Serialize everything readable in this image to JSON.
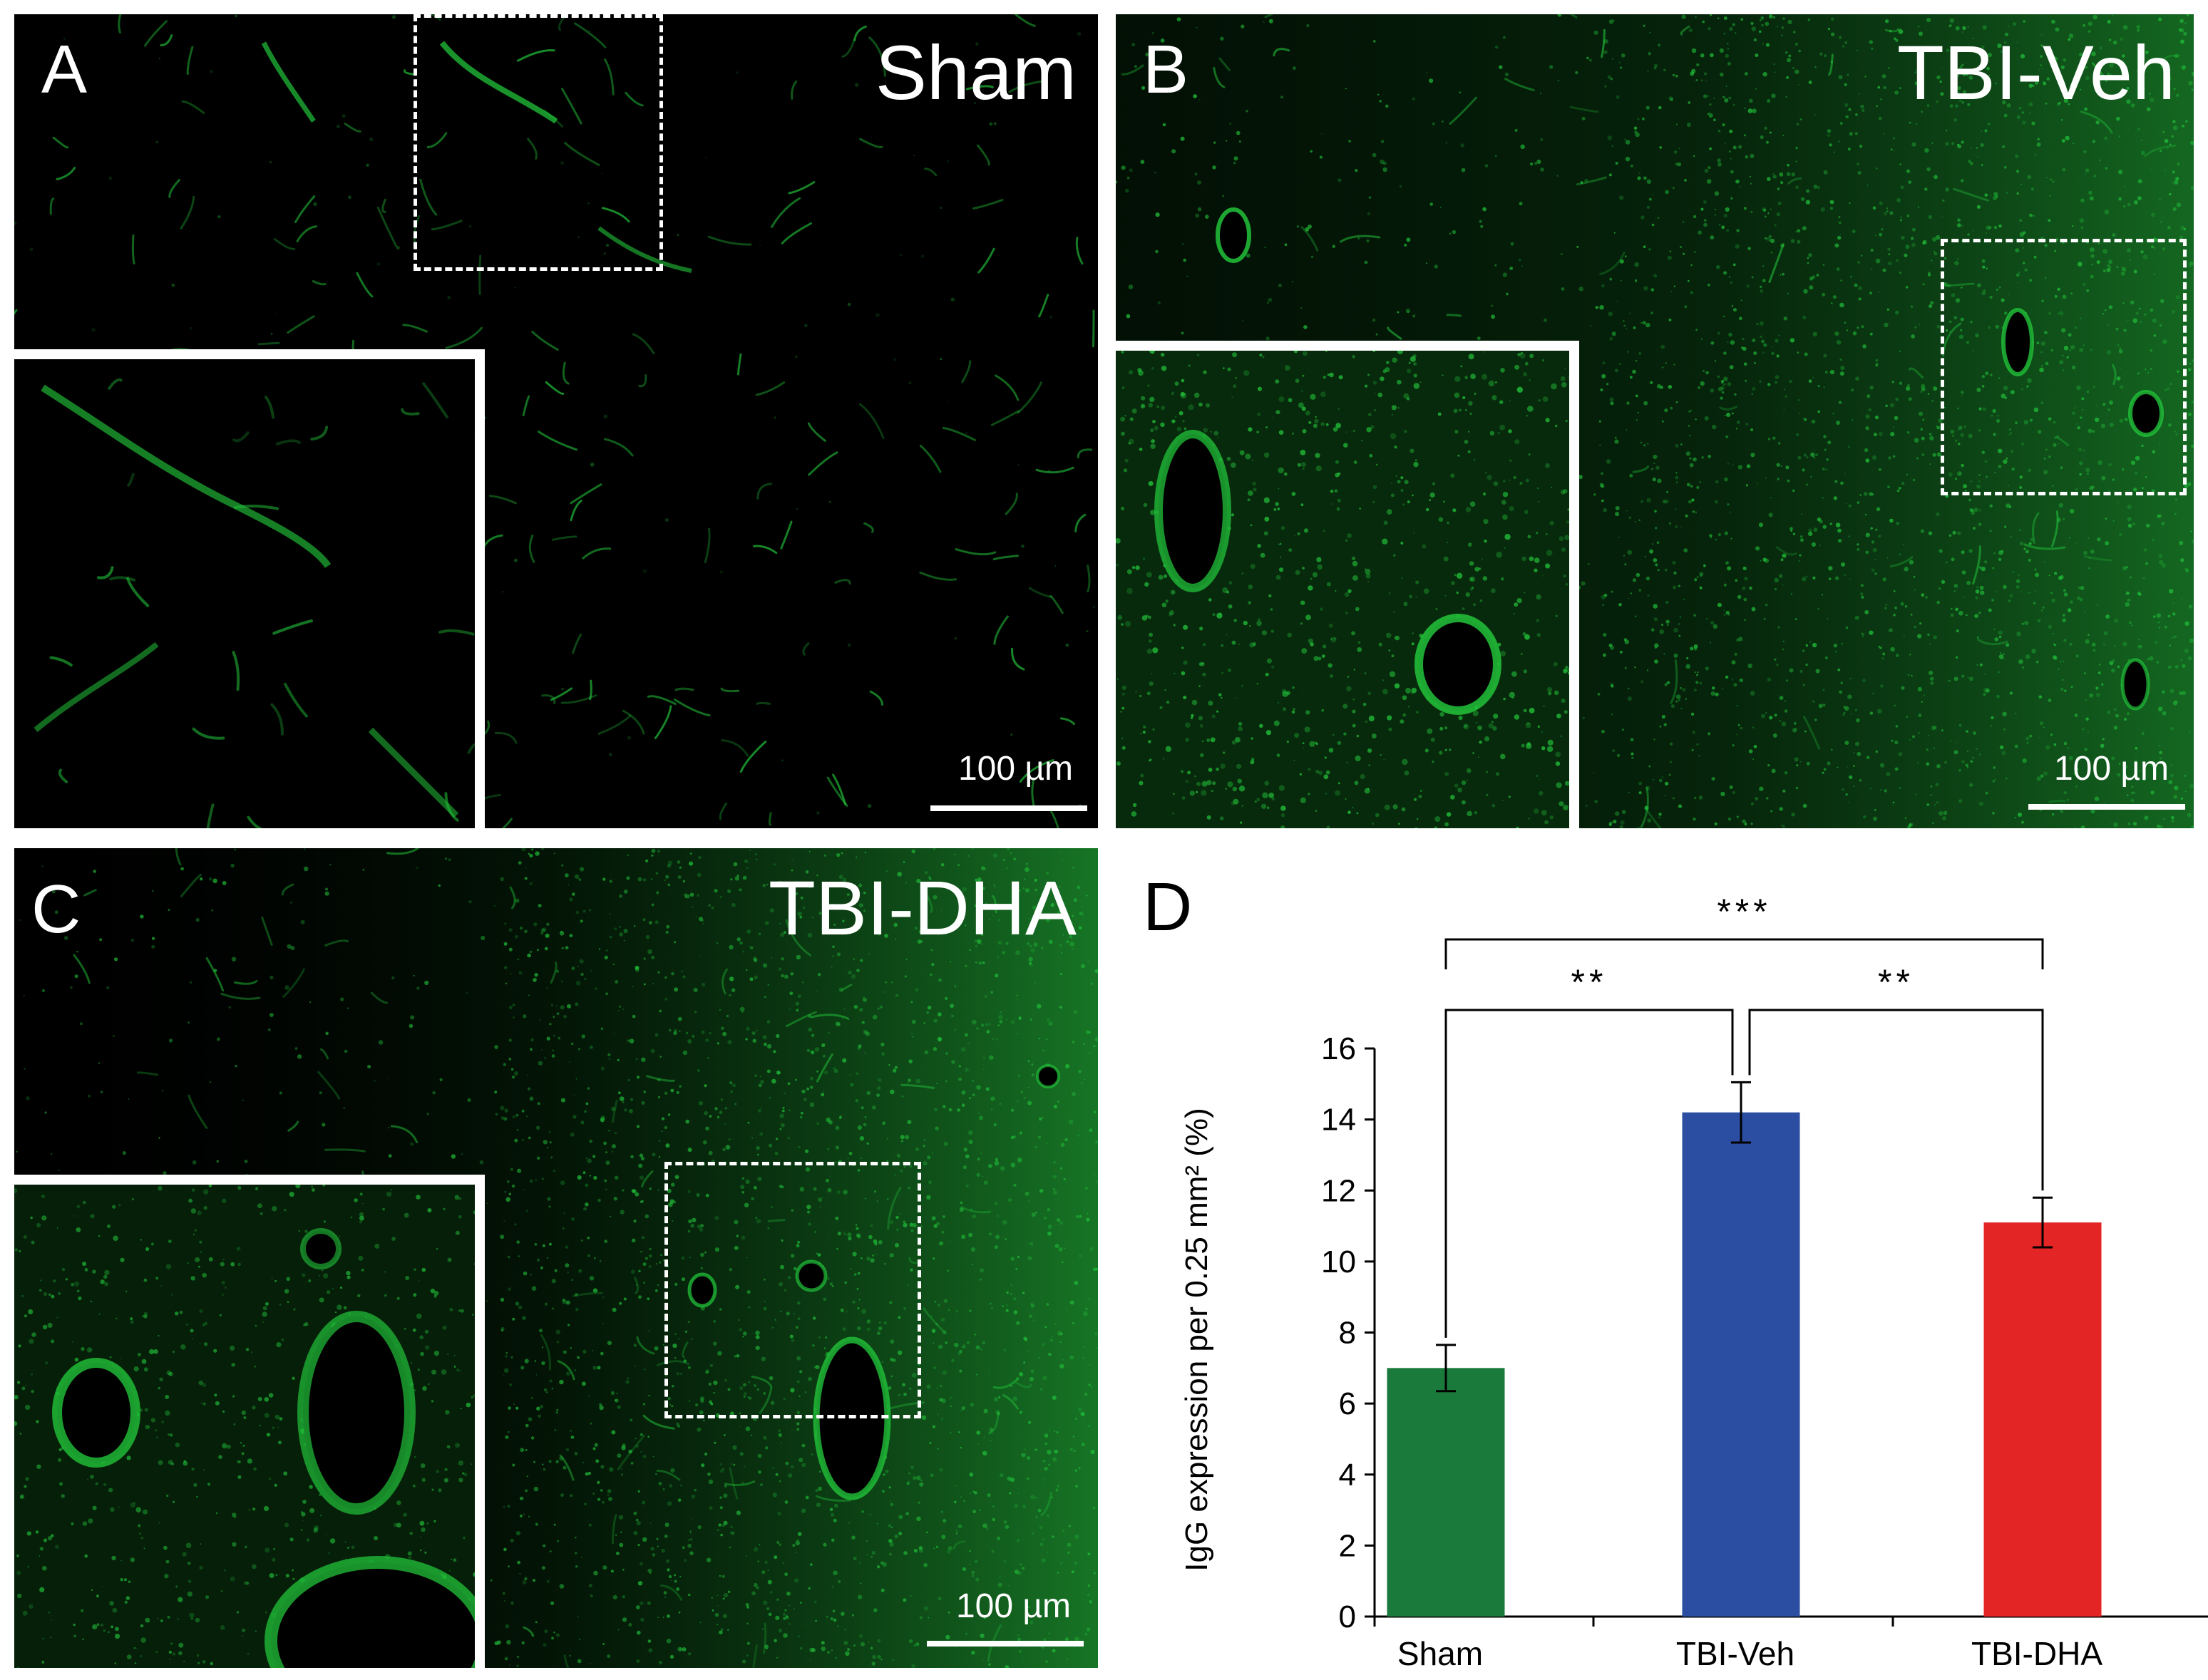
{
  "panels": {
    "a": {
      "letter": "A",
      "condition": "Sham",
      "scale_bar": "100 µm"
    },
    "b": {
      "letter": "B",
      "condition": "TBI-Veh",
      "scale_bar": "100 µm"
    },
    "c": {
      "letter": "C",
      "condition": "TBI-DHA",
      "scale_bar": "100 µm"
    },
    "d": {
      "letter": "D"
    }
  },
  "colors": {
    "fluorescence": "#22c33a",
    "sham_bar": "#1a7a3c",
    "tbi_veh_bar": "#2b4ea2",
    "tbi_dha_bar": "#e32526"
  },
  "chart_data": {
    "type": "bar",
    "categories": [
      "Sham",
      "TBI-Veh",
      "TBI-DHA"
    ],
    "values": [
      7.0,
      14.2,
      11.1
    ],
    "errors": [
      0.65,
      0.85,
      0.7
    ],
    "ylabel": "IgG expression per 0.25 mm² (%)",
    "ylim": [
      0,
      16
    ],
    "yticks": [
      0,
      2,
      4,
      6,
      8,
      10,
      12,
      14,
      16
    ],
    "grid": false,
    "significance": [
      {
        "from": "Sham",
        "to": "TBI-Veh",
        "label": "**"
      },
      {
        "from": "TBI-Veh",
        "to": "TBI-DHA",
        "label": "**"
      },
      {
        "from": "Sham",
        "to": "TBI-DHA",
        "label": "***"
      }
    ]
  }
}
